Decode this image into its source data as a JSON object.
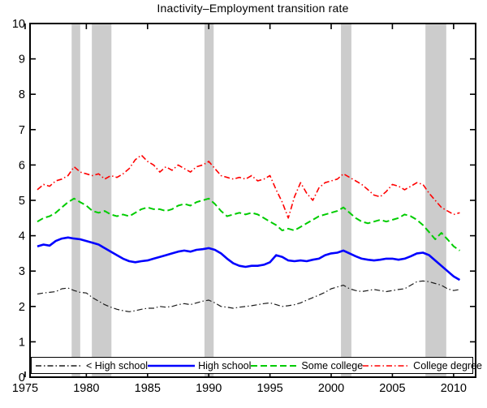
{
  "title": "Inactivity–Employment transition rate",
  "chart_data": {
    "type": "line",
    "title": "Inactivity–Employment transition rate",
    "xlabel": "",
    "ylabel": "",
    "xlim": [
      1975.4,
      2011.8
    ],
    "ylim": [
      0,
      10
    ],
    "x_ticks": [
      1975,
      1980,
      1985,
      1990,
      1995,
      2000,
      2005,
      2010
    ],
    "y_ticks": [
      0,
      1,
      2,
      3,
      4,
      5,
      6,
      7,
      8,
      9,
      10
    ],
    "grid": false,
    "legend_position": "south-horizontal",
    "band_color": "#cccccc",
    "recession_bands": [
      [
        1978.8,
        1979.5
      ],
      [
        1980.45,
        1982.05
      ],
      [
        1989.65,
        1990.4
      ],
      [
        2000.8,
        2001.65
      ],
      [
        2007.7,
        2009.4
      ]
    ],
    "x": [
      1976.0,
      1976.5,
      1977.0,
      1977.5,
      1978.0,
      1978.5,
      1979.0,
      1979.5,
      1980.0,
      1980.5,
      1981.0,
      1981.5,
      1982.0,
      1982.5,
      1983.0,
      1983.5,
      1984.0,
      1984.5,
      1985.0,
      1985.5,
      1986.0,
      1986.5,
      1987.0,
      1987.5,
      1988.0,
      1988.5,
      1989.0,
      1989.5,
      1990.0,
      1990.5,
      1991.0,
      1991.5,
      1992.0,
      1992.5,
      1993.0,
      1993.5,
      1994.0,
      1994.5,
      1995.0,
      1995.5,
      1996.0,
      1996.5,
      1997.0,
      1997.5,
      1998.0,
      1998.5,
      1999.0,
      1999.5,
      2000.0,
      2000.5,
      2001.0,
      2001.5,
      2002.0,
      2002.5,
      2003.0,
      2003.5,
      2004.0,
      2004.5,
      2005.0,
      2005.5,
      2006.0,
      2006.5,
      2007.0,
      2007.5,
      2008.0,
      2008.5,
      2009.0,
      2009.5,
      2010.0,
      2010.5
    ],
    "series": [
      {
        "name": "< High school",
        "color": "#1a1a1a",
        "style": "dash-dot",
        "width": 1.2,
        "values": [
          2.35,
          2.38,
          2.4,
          2.42,
          2.5,
          2.52,
          2.45,
          2.4,
          2.38,
          2.25,
          2.15,
          2.05,
          1.98,
          1.92,
          1.88,
          1.85,
          1.88,
          1.92,
          1.95,
          1.95,
          2.0,
          1.98,
          2.0,
          2.05,
          2.08,
          2.05,
          2.1,
          2.15,
          2.18,
          2.1,
          2.0,
          1.98,
          1.95,
          1.98,
          2.0,
          2.02,
          2.05,
          2.08,
          2.1,
          2.05,
          2.0,
          2.02,
          2.05,
          2.1,
          2.18,
          2.25,
          2.32,
          2.4,
          2.5,
          2.55,
          2.6,
          2.5,
          2.45,
          2.42,
          2.45,
          2.48,
          2.45,
          2.42,
          2.45,
          2.48,
          2.5,
          2.6,
          2.7,
          2.72,
          2.7,
          2.65,
          2.6,
          2.5,
          2.45,
          2.48
        ]
      },
      {
        "name": "High school",
        "color": "#0000ff",
        "style": "solid",
        "width": 2.6,
        "values": [
          3.7,
          3.75,
          3.72,
          3.85,
          3.92,
          3.95,
          3.92,
          3.9,
          3.85,
          3.8,
          3.75,
          3.65,
          3.55,
          3.45,
          3.35,
          3.28,
          3.25,
          3.28,
          3.3,
          3.35,
          3.4,
          3.45,
          3.5,
          3.55,
          3.58,
          3.55,
          3.6,
          3.62,
          3.65,
          3.6,
          3.5,
          3.35,
          3.22,
          3.15,
          3.12,
          3.15,
          3.15,
          3.18,
          3.25,
          3.45,
          3.4,
          3.3,
          3.28,
          3.3,
          3.28,
          3.32,
          3.35,
          3.45,
          3.5,
          3.52,
          3.58,
          3.5,
          3.42,
          3.35,
          3.32,
          3.3,
          3.32,
          3.35,
          3.35,
          3.32,
          3.35,
          3.42,
          3.5,
          3.52,
          3.45,
          3.3,
          3.15,
          3.0,
          2.85,
          2.75
        ]
      },
      {
        "name": "Some college",
        "color": "#00cc00",
        "style": "dashed",
        "width": 2.0,
        "values": [
          4.4,
          4.5,
          4.55,
          4.65,
          4.8,
          4.95,
          5.05,
          4.95,
          4.85,
          4.7,
          4.65,
          4.7,
          4.6,
          4.55,
          4.6,
          4.55,
          4.65,
          4.75,
          4.8,
          4.75,
          4.75,
          4.7,
          4.75,
          4.85,
          4.9,
          4.85,
          4.95,
          5.0,
          5.05,
          4.9,
          4.7,
          4.55,
          4.6,
          4.65,
          4.6,
          4.65,
          4.6,
          4.5,
          4.4,
          4.3,
          4.15,
          4.2,
          4.15,
          4.25,
          4.35,
          4.45,
          4.55,
          4.6,
          4.65,
          4.7,
          4.8,
          4.65,
          4.5,
          4.4,
          4.35,
          4.4,
          4.45,
          4.4,
          4.45,
          4.5,
          4.6,
          4.55,
          4.45,
          4.3,
          4.1,
          3.9,
          4.08,
          3.9,
          3.7,
          3.58
        ]
      },
      {
        "name": "College degree",
        "color": "#ff0000",
        "style": "dash-dot",
        "width": 1.6,
        "values": [
          5.3,
          5.45,
          5.4,
          5.55,
          5.6,
          5.7,
          5.95,
          5.8,
          5.75,
          5.7,
          5.75,
          5.6,
          5.7,
          5.65,
          5.75,
          5.9,
          6.15,
          6.28,
          6.1,
          6.0,
          5.8,
          5.95,
          5.85,
          6.0,
          5.9,
          5.8,
          5.95,
          6.0,
          6.1,
          5.9,
          5.7,
          5.65,
          5.6,
          5.65,
          5.6,
          5.7,
          5.55,
          5.6,
          5.7,
          5.3,
          4.95,
          4.5,
          5.1,
          5.5,
          5.2,
          5.0,
          5.35,
          5.5,
          5.55,
          5.6,
          5.75,
          5.65,
          5.55,
          5.45,
          5.3,
          5.15,
          5.1,
          5.25,
          5.45,
          5.4,
          5.3,
          5.4,
          5.5,
          5.45,
          5.2,
          5.0,
          4.8,
          4.7,
          4.6,
          4.65
        ]
      }
    ]
  }
}
